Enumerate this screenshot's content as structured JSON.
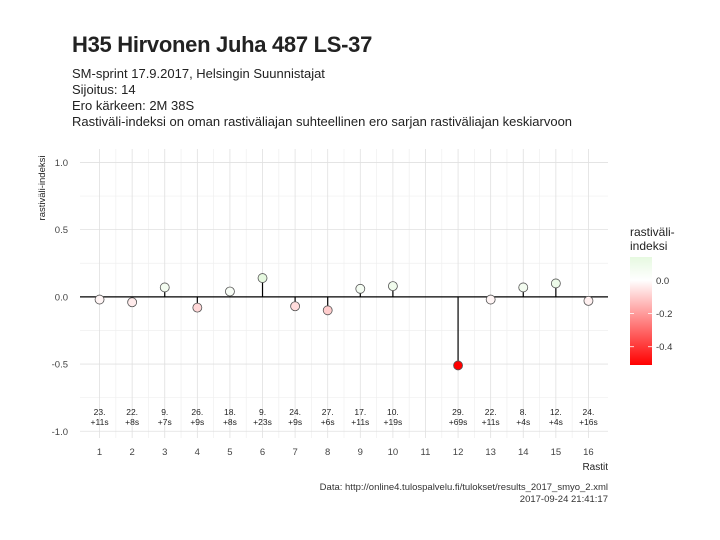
{
  "header": {
    "title": "H35 Hirvonen Juha 487 LS-37",
    "line1": "SM-sprint 17.9.2017, Helsingin Suunnistajat",
    "line2": "Sijoitus: 14",
    "line3": "Ero kärkeen: 2M 38S",
    "line4": "Rastiväli-indeksi on oman rastiväliajan suhteellinen ero sarjan rastiväliajan keskiarvoon"
  },
  "footer": {
    "source": "Data: http://online4.tulospalvelu.fi/tulokset/results_2017_smyo_2.xml",
    "timestamp": "2017-09-24 21:41:17"
  },
  "colors": {
    "positive": "#e6f9e0",
    "zero": "#ffffff",
    "negative": "#ff0000",
    "grid": "#e0e0e0",
    "stem": "#000000"
  },
  "chart_data": {
    "type": "lollipop",
    "xlabel": "Rastit",
    "ylabel": "rastiväli-indeksi",
    "ylim": [
      -1.05,
      1.1
    ],
    "yticks": [
      1.0,
      0.5,
      0.0,
      -0.5,
      -1.0
    ],
    "ytick_labels": [
      "1.0",
      "0.5",
      "0.0",
      "-0.5",
      "-1.0"
    ],
    "xlim": [
      0.4,
      16.6
    ],
    "xticks": [
      1,
      2,
      3,
      4,
      5,
      6,
      7,
      8,
      9,
      10,
      11,
      12,
      13,
      14,
      15,
      16
    ],
    "points": [
      {
        "x": 1,
        "y": -0.02,
        "rank": "23.",
        "diff": "+11s"
      },
      {
        "x": 2,
        "y": -0.04,
        "rank": "22.",
        "diff": "+8s"
      },
      {
        "x": 3,
        "y": 0.07,
        "rank": "9.",
        "diff": "+7s"
      },
      {
        "x": 4,
        "y": -0.08,
        "rank": "26.",
        "diff": "+9s"
      },
      {
        "x": 5,
        "y": 0.04,
        "rank": "18.",
        "diff": "+8s"
      },
      {
        "x": 6,
        "y": 0.14,
        "rank": "9.",
        "diff": "+23s"
      },
      {
        "x": 7,
        "y": -0.07,
        "rank": "24.",
        "diff": "+9s"
      },
      {
        "x": 8,
        "y": -0.1,
        "rank": "27.",
        "diff": "+6s"
      },
      {
        "x": 9,
        "y": 0.06,
        "rank": "17.",
        "diff": "+11s"
      },
      {
        "x": 10,
        "y": 0.08,
        "rank": "10.",
        "diff": "+19s"
      },
      {
        "x": 12,
        "y": -0.51,
        "rank": "29.",
        "diff": "+69s"
      },
      {
        "x": 13,
        "y": -0.02,
        "rank": "22.",
        "diff": "+11s"
      },
      {
        "x": 14,
        "y": 0.07,
        "rank": "8.",
        "diff": "+4s"
      },
      {
        "x": 15,
        "y": 0.1,
        "rank": "12.",
        "diff": "+4s"
      },
      {
        "x": 16,
        "y": -0.03,
        "rank": "24.",
        "diff": "+16s"
      }
    ],
    "legend": {
      "title_line1": "rastiväli-",
      "title_line2": "indeksi",
      "ticks": [
        0.0,
        -0.2,
        -0.4
      ],
      "tick_labels": [
        "0.0",
        "-0.2",
        "-0.4"
      ],
      "range": [
        -0.51,
        0.14
      ],
      "placement": "right"
    }
  }
}
